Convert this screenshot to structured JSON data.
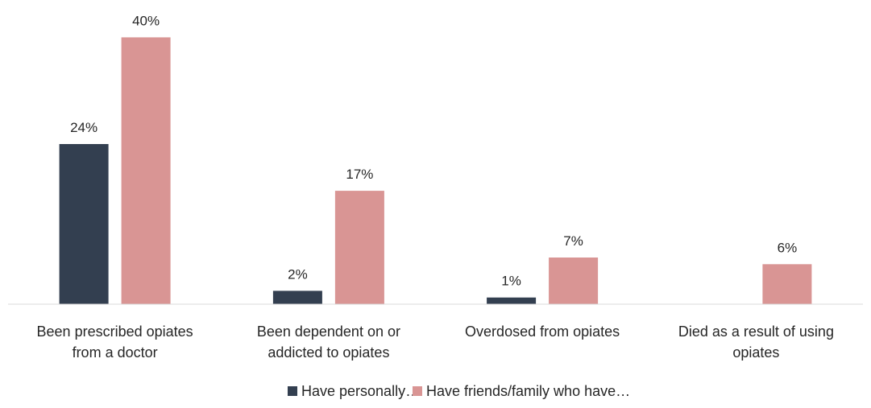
{
  "chart_data": {
    "type": "bar",
    "title": "",
    "xlabel": "",
    "ylabel": "",
    "categories": [
      [
        "Been prescribed opiates",
        "from a doctor"
      ],
      [
        "Been dependent on or",
        "addicted to opiates"
      ],
      [
        "Overdosed from opiates"
      ],
      [
        "Died as a result of using",
        "opiates"
      ]
    ],
    "series": [
      {
        "name": "Have personally…",
        "color": "#333f50",
        "values": [
          24,
          2,
          1,
          null
        ],
        "labels": [
          "24%",
          "2%",
          "1%",
          ""
        ]
      },
      {
        "name": "Have friends/family who have…",
        "color": "#d99594",
        "values": [
          40,
          17,
          7,
          6
        ],
        "labels": [
          "40%",
          "17%",
          "7%",
          "6%"
        ]
      }
    ],
    "ylim": [
      0,
      40
    ],
    "grid": false,
    "legend_position": "bottom"
  }
}
